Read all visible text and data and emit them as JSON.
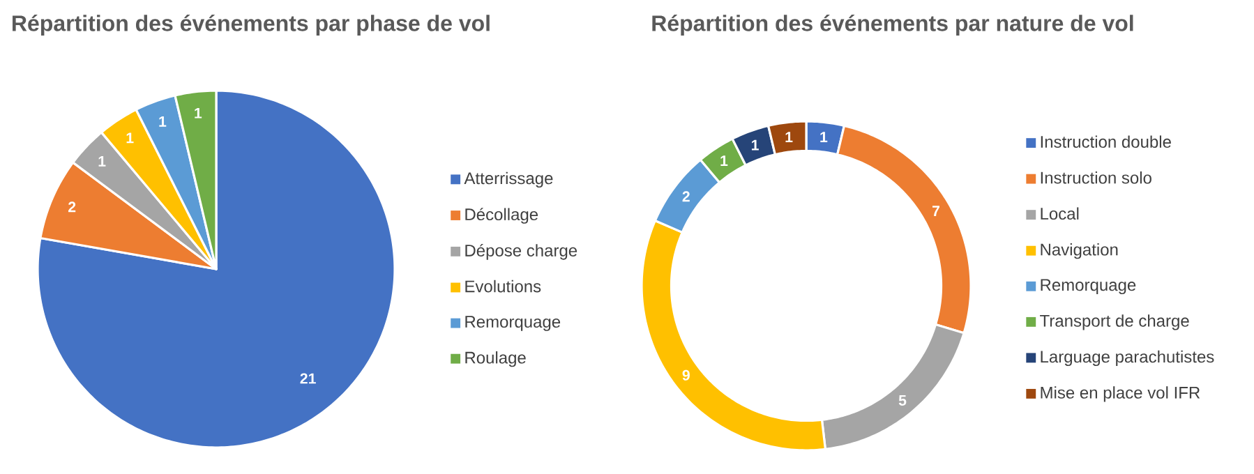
{
  "chart_data": [
    {
      "type": "pie",
      "title": "Répartition des événements par phase de vol",
      "categories": [
        "Atterrissage",
        "Décollage",
        "Dépose charge",
        "Evolutions",
        "Remorquage",
        "Roulage"
      ],
      "values": [
        21,
        2,
        1,
        1,
        1,
        1
      ],
      "colors": [
        "#4472c4",
        "#ed7d31",
        "#a5a5a5",
        "#ffc000",
        "#5b9bd5",
        "#70ad47"
      ],
      "data_labels": true,
      "legend": "right"
    },
    {
      "type": "donut",
      "title": "Répartition des événements par nature de vol",
      "categories": [
        "Instruction double",
        "Instruction solo",
        "Local",
        "Navigation",
        "Remorquage",
        "Transport de charge",
        "Larguage parachutistes",
        "Mise en place vol IFR"
      ],
      "values": [
        1,
        7,
        5,
        9,
        2,
        1,
        1,
        1
      ],
      "colors": [
        "#4472c4",
        "#ed7d31",
        "#a5a5a5",
        "#ffc000",
        "#5b9bd5",
        "#70ad47",
        "#264478",
        "#9e480e"
      ],
      "data_labels": true,
      "legend": "right"
    }
  ]
}
